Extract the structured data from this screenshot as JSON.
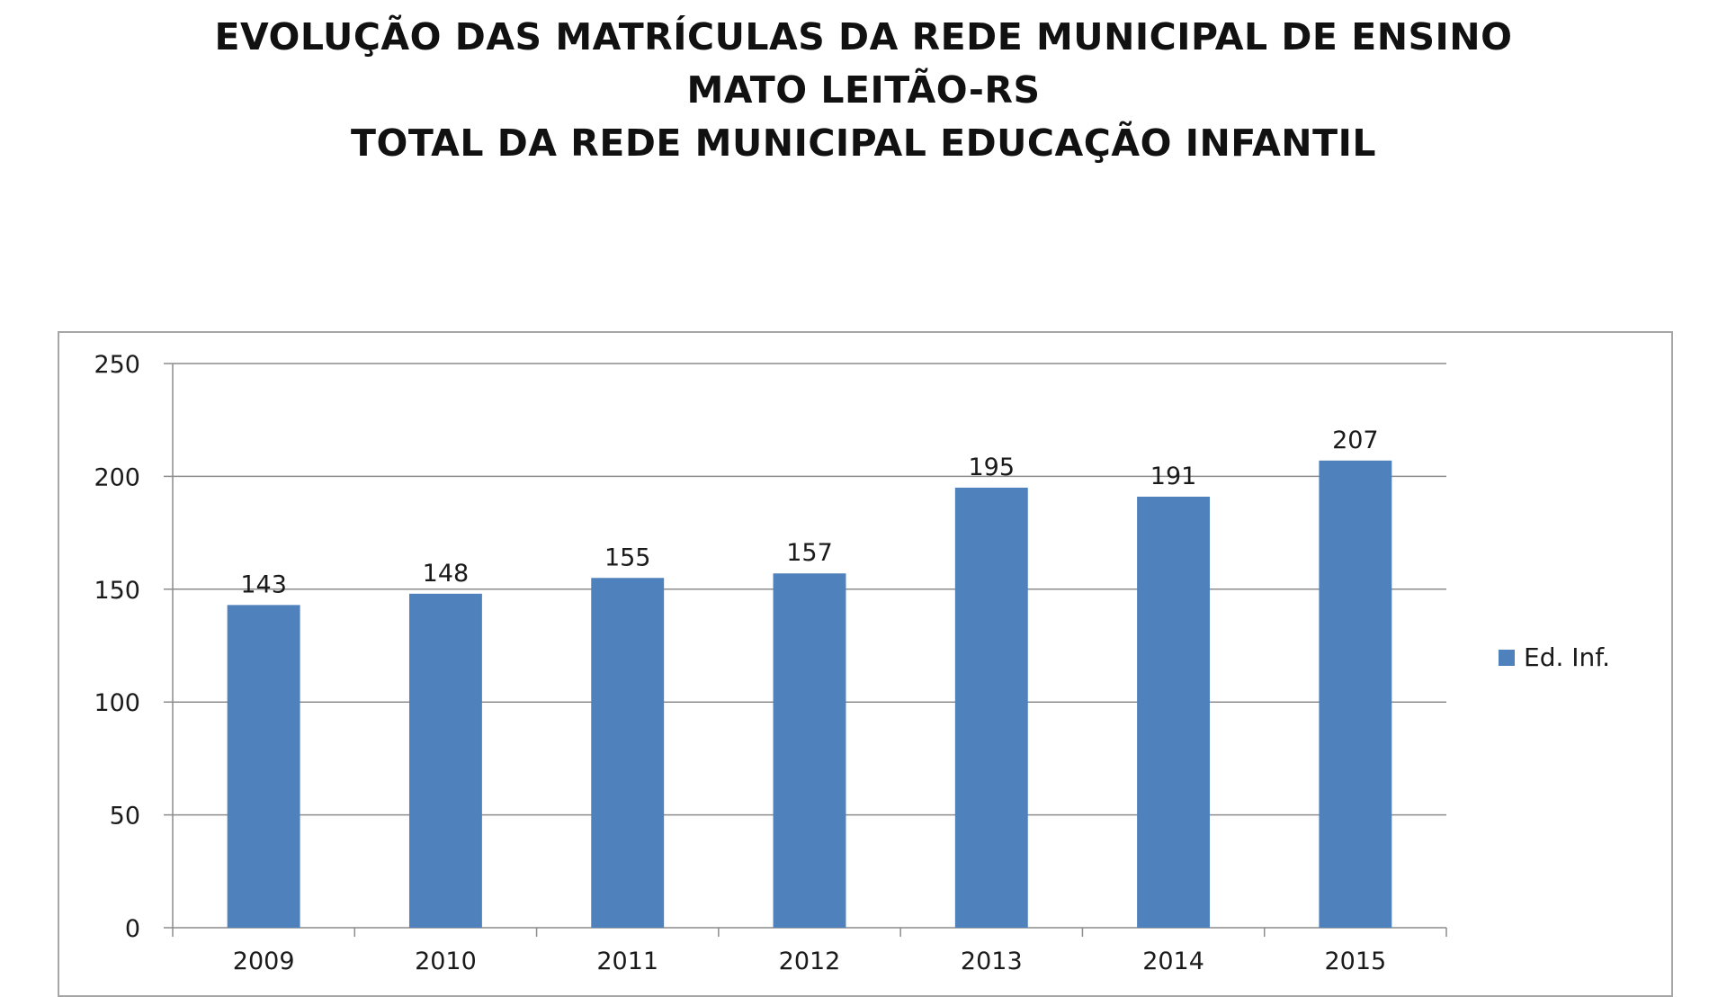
{
  "title_lines": [
    "EVOLUÇÃO DAS MATRÍCULAS DA REDE MUNICIPAL DE ENSINO",
    "MATO LEITÃO-RS",
    "TOTAL DA REDE MUNICIPAL EDUCAÇÃO INFANTIL"
  ],
  "chart_data": {
    "type": "bar",
    "title": "EVOLUÇÃO DAS MATRÍCULAS DA REDE MUNICIPAL DE ENSINO MATO LEITÃO-RS TOTAL DA REDE MUNICIPAL EDUCAÇÃO INFANTIL",
    "categories": [
      "2009",
      "2010",
      "2011",
      "2012",
      "2013",
      "2014",
      "2015"
    ],
    "series": [
      {
        "name": "Ed. Inf.",
        "values": [
          143,
          148,
          155,
          157,
          195,
          191,
          207
        ],
        "color": "#4f81bd"
      }
    ],
    "xlabel": "",
    "ylabel": "",
    "ylim": [
      0,
      250
    ],
    "yticks": [
      0,
      50,
      100,
      150,
      200,
      250
    ],
    "grid": true,
    "data_labels": true,
    "legend_position": "right"
  }
}
